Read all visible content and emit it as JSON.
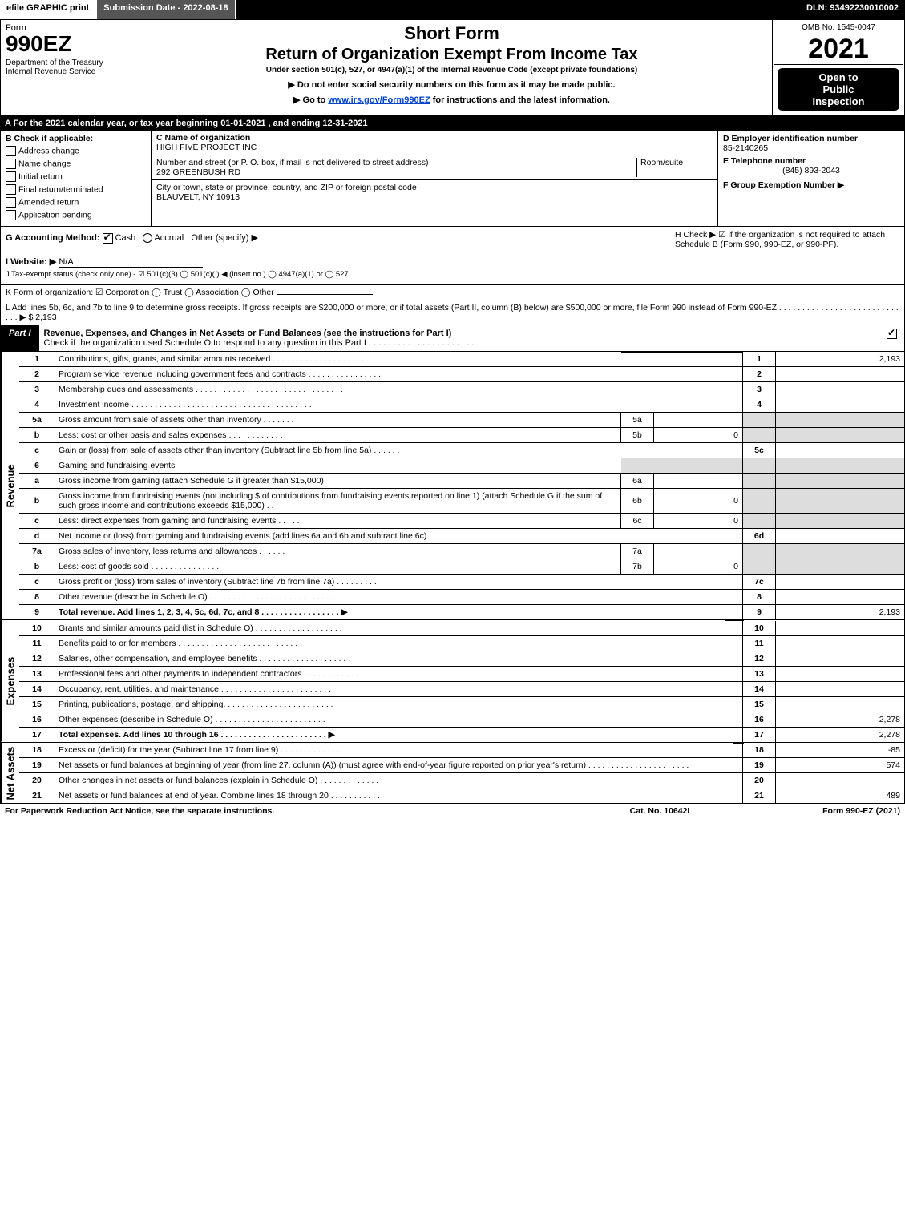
{
  "topbar": {
    "efile": "efile GRAPHIC print",
    "sub": "Submission Date - 2022-08-18",
    "dln": "DLN: 93492230010002"
  },
  "header": {
    "form_label": "Form",
    "form_num": "990EZ",
    "dept": "Department of the Treasury\nInternal Revenue Service",
    "sf": "Short Form",
    "return_title": "Return of Organization Exempt From Income Tax",
    "under": "Under section 501(c), 527, or 4947(a)(1) of the Internal Revenue Code (except private foundations)",
    "note1": "▶ Do not enter social security numbers on this form as it may be made public.",
    "note2_pre": "▶ Go to ",
    "note2_link": "www.irs.gov/Form990EZ",
    "note2_post": " for instructions and the latest information.",
    "omb": "OMB No. 1545-0047",
    "year": "2021",
    "insp1": "Open to",
    "insp2": "Public",
    "insp3": "Inspection"
  },
  "row_a": "A  For the 2021 calendar year, or tax year beginning 01-01-2021 , and ending 12-31-2021",
  "box_b": {
    "title": "B  Check if applicable:",
    "items": [
      "Address change",
      "Name change",
      "Initial return",
      "Final return/terminated",
      "Amended return",
      "Application pending"
    ]
  },
  "box_c": {
    "c_label": "C Name of organization",
    "c_name": "HIGH FIVE PROJECT INC",
    "addr_label": "Number and street (or P. O. box, if mail is not delivered to street address)",
    "room": "Room/suite",
    "addr": "292 GREENBUSH RD",
    "city_label": "City or town, state or province, country, and ZIP or foreign postal code",
    "city": "BLAUVELT, NY  10913"
  },
  "box_d": {
    "d_label": "D Employer identification number",
    "ein": "85-2140265",
    "e_label": "E Telephone number",
    "phone": "(845) 893-2043",
    "f_label": "F Group Exemption Number  ▶"
  },
  "g": {
    "label": "G Accounting Method:",
    "cash": "Cash",
    "accrual": "Accrual",
    "other": "Other (specify) ▶"
  },
  "h": "H  Check ▶ ☑ if the organization is not required to attach Schedule B (Form 990, 990-EZ, or 990-PF).",
  "i": {
    "label": "I Website: ▶",
    "value": "N/A"
  },
  "j": "J Tax-exempt status (check only one) - ☑ 501(c)(3)  ◯ 501(c)(  ) ◀ (insert no.)  ◯ 4947(a)(1) or  ◯ 527",
  "k": "K Form of organization:  ☑ Corporation  ◯ Trust  ◯ Association  ◯ Other",
  "l": {
    "text": "L Add lines 5b, 6c, and 7b to line 9 to determine gross receipts. If gross receipts are $200,000 or more, or if total assets (Part II, column (B) below) are $500,000 or more, file Form 990 instead of Form 990-EZ  .  .  .  .  .  .  .  .  .  .  .  .  .  .  .  .  .  .  .  .  .  .  .  .  .  .  .  .  .  ▶ $",
    "amount": "2,193"
  },
  "part1": {
    "tab": "Part I",
    "desc": "Revenue, Expenses, and Changes in Net Assets or Fund Balances (see the instructions for Part I)",
    "check_line": "Check if the organization used Schedule O to respond to any question in this Part I .  .  .  .  .  .  .  .  .  .  .  .  .  .  .  .  .  .  .  .  .  ."
  },
  "revenue_label": "Revenue",
  "revenue": [
    {
      "ln": "1",
      "desc": "Contributions, gifts, grants, and similar amounts received  .  .  .  .  .  .  .  .  .  .  .  .  .  .  .  .  .  .  .  .",
      "num": "1",
      "amt": "2,193"
    },
    {
      "ln": "2",
      "desc": "Program service revenue including government fees and contracts  .  .  .  .  .  .  .  .  .  .  .  .  .  .  .  .",
      "num": "2",
      "amt": ""
    },
    {
      "ln": "3",
      "desc": "Membership dues and assessments  .  .  .  .  .  .  .  .  .  .  .  .  .  .  .  .  .  .  .  .  .  .  .  .  .  .  .  .  .  .  .  .",
      "num": "3",
      "amt": ""
    },
    {
      "ln": "4",
      "desc": "Investment income  .  .  .  .  .  .  .  .  .  .  .  .  .  .  .  .  .  .  .  .  .  .  .  .  .  .  .  .  .  .  .  .  .  .  .  .  .  .  .",
      "num": "4",
      "amt": ""
    },
    {
      "ln": "5a",
      "desc": "Gross amount from sale of assets other than inventory  .  .  .  .  .  .  .",
      "sub_ln": "5a",
      "sub_amt": ""
    },
    {
      "ln": "b",
      "desc": "Less: cost or other basis and sales expenses  .  .  .  .  .  .  .  .  .  .  .  .",
      "sub_ln": "5b",
      "sub_amt": "0"
    },
    {
      "ln": "c",
      "desc": "Gain or (loss) from sale of assets other than inventory (Subtract line 5b from line 5a)  .  .  .  .  .  .",
      "num": "5c",
      "amt": ""
    },
    {
      "ln": "6",
      "desc": "Gaming and fundraising events",
      "num": "",
      "amt": "",
      "shade": true
    },
    {
      "ln": "a",
      "desc": "Gross income from gaming (attach Schedule G if greater than $15,000)",
      "sub_ln": "6a",
      "sub_amt": ""
    },
    {
      "ln": "b",
      "desc": "Gross income from fundraising events (not including $                    of contributions from fundraising events reported on line 1) (attach Schedule G if the sum of such gross income and contributions exceeds $15,000)   .    .",
      "sub_ln": "6b",
      "sub_amt": "0"
    },
    {
      "ln": "c",
      "desc": "Less: direct expenses from gaming and fundraising events  .  .  .  .  .",
      "sub_ln": "6c",
      "sub_amt": "0"
    },
    {
      "ln": "d",
      "desc": "Net income or (loss) from gaming and fundraising events (add lines 6a and 6b and subtract line 6c)",
      "num": "6d",
      "amt": ""
    },
    {
      "ln": "7a",
      "desc": "Gross sales of inventory, less returns and allowances  .  .  .  .  .  .",
      "sub_ln": "7a",
      "sub_amt": ""
    },
    {
      "ln": "b",
      "desc": "Less: cost of goods sold        .  .  .  .  .  .  .  .  .  .  .  .  .  .  .",
      "sub_ln": "7b",
      "sub_amt": "0"
    },
    {
      "ln": "c",
      "desc": "Gross profit or (loss) from sales of inventory (Subtract line 7b from line 7a)  .  .  .  .  .  .  .  .  .",
      "num": "7c",
      "amt": ""
    },
    {
      "ln": "8",
      "desc": "Other revenue (describe in Schedule O)  .  .  .  .  .  .  .  .  .  .  .  .  .  .  .  .  .  .  .  .  .  .  .  .  .  .  .",
      "num": "8",
      "amt": ""
    },
    {
      "ln": "9",
      "desc": "Total revenue. Add lines 1, 2, 3, 4, 5c, 6d, 7c, and 8   .   .   .   .   .   .   .   .   .   .   .   .   .   .   .   .   .   ▶",
      "num": "9",
      "amt": "2,193",
      "bold": true
    }
  ],
  "expenses_label": "Expenses",
  "expenses": [
    {
      "ln": "10",
      "desc": "Grants and similar amounts paid (list in Schedule O)  .  .  .  .  .  .  .  .  .  .  .  .  .  .  .  .  .  .  .",
      "num": "10",
      "amt": ""
    },
    {
      "ln": "11",
      "desc": "Benefits paid to or for members       .  .  .  .  .  .  .  .  .  .  .  .  .  .  .  .  .  .  .  .  .  .  .  .  .  .  .",
      "num": "11",
      "amt": ""
    },
    {
      "ln": "12",
      "desc": "Salaries, other compensation, and employee benefits .  .  .  .  .  .  .  .  .  .  .  .  .  .  .  .  .  .  .  .",
      "num": "12",
      "amt": ""
    },
    {
      "ln": "13",
      "desc": "Professional fees and other payments to independent contractors  .  .  .  .  .  .  .  .  .  .  .  .  .  .",
      "num": "13",
      "amt": ""
    },
    {
      "ln": "14",
      "desc": "Occupancy, rent, utilities, and maintenance .  .  .  .  .  .  .  .  .  .  .  .  .  .  .  .  .  .  .  .  .  .  .  .",
      "num": "14",
      "amt": ""
    },
    {
      "ln": "15",
      "desc": "Printing, publications, postage, and shipping.  .  .  .  .  .  .  .  .  .  .  .  .  .  .  .  .  .  .  .  .  .  .  .",
      "num": "15",
      "amt": ""
    },
    {
      "ln": "16",
      "desc": "Other expenses (describe in Schedule O)     .  .  .  .  .  .  .  .  .  .  .  .  .  .  .  .  .  .  .  .  .  .  .  .",
      "num": "16",
      "amt": "2,278"
    },
    {
      "ln": "17",
      "desc": "Total expenses. Add lines 10 through 16      .  .  .  .  .  .  .  .  .  .  .  .  .  .  .  .  .  .  .  .  .  .  .   ▶",
      "num": "17",
      "amt": "2,278",
      "bold": true
    }
  ],
  "netassets_label": "Net Assets",
  "netassets": [
    {
      "ln": "18",
      "desc": "Excess or (deficit) for the year (Subtract line 17 from line 9)        .  .  .  .  .  .  .  .  .  .  .  .  .",
      "num": "18",
      "amt": "-85"
    },
    {
      "ln": "19",
      "desc": "Net assets or fund balances at beginning of year (from line 27, column (A)) (must agree with end-of-year figure reported on prior year's return) .  .  .  .  .  .  .  .  .  .  .  .  .  .  .  .  .  .  .  .  .  .",
      "num": "19",
      "amt": "574"
    },
    {
      "ln": "20",
      "desc": "Other changes in net assets or fund balances (explain in Schedule O) .  .  .  .  .  .  .  .  .  .  .  .  .",
      "num": "20",
      "amt": ""
    },
    {
      "ln": "21",
      "desc": "Net assets or fund balances at end of year. Combine lines 18 through 20 .  .  .  .  .  .  .  .  .  .  .",
      "num": "21",
      "amt": "489"
    }
  ],
  "footer": {
    "left": "For Paperwork Reduction Act Notice, see the separate instructions.",
    "mid": "Cat. No. 10642I",
    "right": "Form 990-EZ (2021)"
  }
}
